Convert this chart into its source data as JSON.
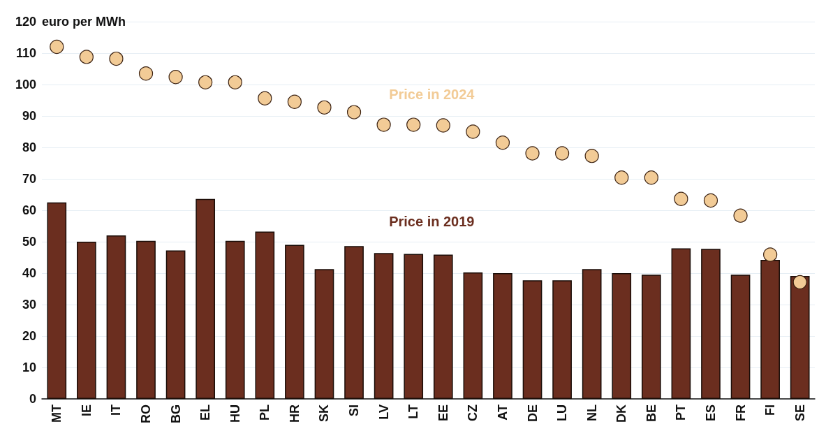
{
  "chart_data": {
    "type": "bar",
    "ylabel": "euro per MWh",
    "categories": [
      "MT",
      "IE",
      "IT",
      "RO",
      "BG",
      "EL",
      "HU",
      "PL",
      "HR",
      "SK",
      "SI",
      "LV",
      "LT",
      "EE",
      "CZ",
      "AT",
      "DE",
      "LU",
      "NL",
      "DK",
      "BE",
      "PT",
      "ES",
      "FR",
      "FI",
      "SE"
    ],
    "series": [
      {
        "name": "Price in 2019",
        "color": "#6b2e1f",
        "values": [
          62.5,
          50,
          52,
          50.3,
          47.2,
          63.6,
          50.3,
          53.2,
          49,
          41.3,
          48.6,
          46.4,
          46.1,
          45.9,
          40.2,
          40,
          37.7,
          37.7,
          41.3,
          40,
          39.5,
          47.9,
          47.7,
          39.5,
          44.2,
          39.1
        ]
      },
      {
        "name": "Price in 2024",
        "type": "scatter",
        "color": "#f2cb96",
        "marker": "circle",
        "values": [
          112,
          108.8,
          108.2,
          103.5,
          102.4,
          100.7,
          100.7,
          95.6,
          94.5,
          92.7,
          91.2,
          87.2,
          87.2,
          87,
          85,
          81.5,
          78.1,
          78.1,
          77.3,
          70.4,
          70.4,
          63.6,
          63.1,
          58.3,
          45.9,
          37.1
        ]
      }
    ],
    "ylim": [
      0,
      120
    ],
    "yticks": [
      0,
      10,
      20,
      30,
      40,
      50,
      60,
      70,
      80,
      90,
      100,
      110,
      120
    ],
    "grid": "y",
    "legend": false
  }
}
